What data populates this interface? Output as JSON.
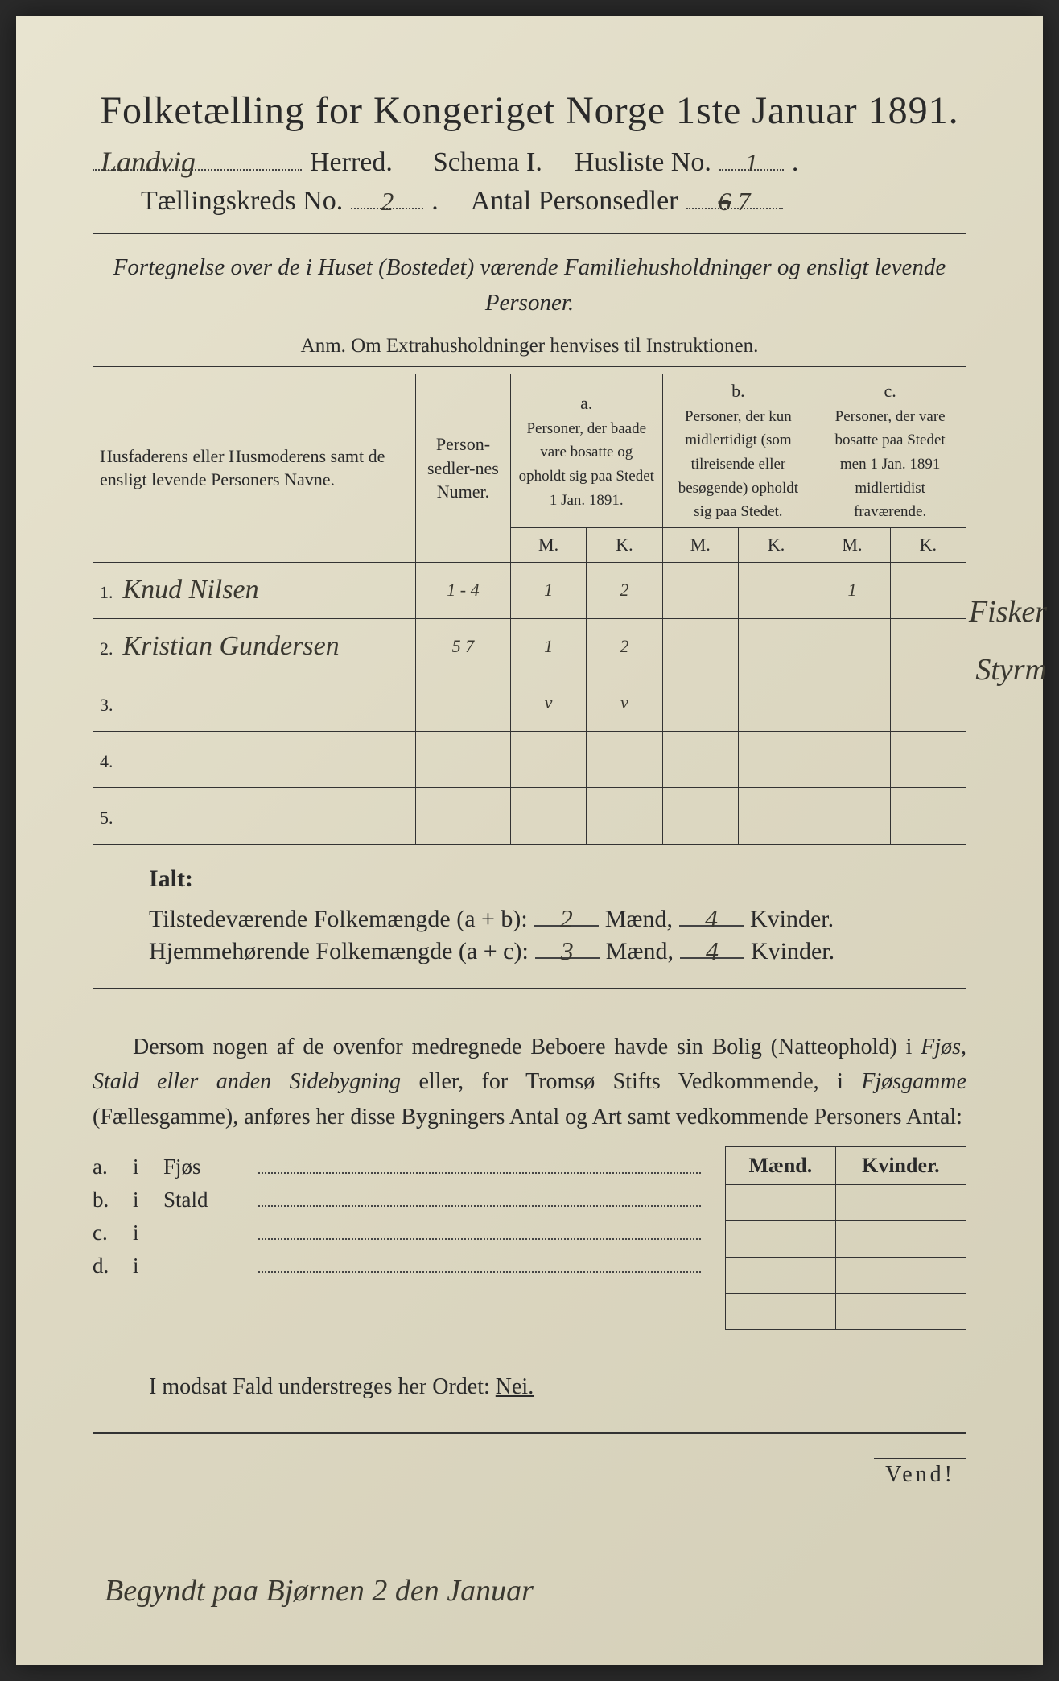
{
  "document": {
    "title": "Folketælling for Kongeriget Norge 1ste Januar 1891.",
    "herred_value": "Landvig",
    "herred_label": "Herred.",
    "schema_label": "Schema I.",
    "husliste_label": "Husliste No.",
    "husliste_value": "1",
    "kreds_label": "Tællingskreds No.",
    "kreds_value": "2",
    "personsedler_label": "Antal Personsedler",
    "personsedler_struck": "6",
    "personsedler_value": "7",
    "subtitle": "Fortegnelse over de i Huset (Bostedet) værende Familiehusholdninger og ensligt levende Personer.",
    "anm": "Anm. Om Extrahusholdninger henvises til Instruktionen."
  },
  "table": {
    "col_name": "Husfaderens eller Husmoderens samt de ensligt levende Personers Navne.",
    "col_num": "Person-sedler-nes Numer.",
    "col_a_head": "a.",
    "col_a": "Personer, der baade vare bosatte og opholdt sig paa Stedet 1 Jan. 1891.",
    "col_b_head": "b.",
    "col_b": "Personer, der kun midlertidigt (som tilreisende eller besøgende) opholdt sig paa Stedet.",
    "col_c_head": "c.",
    "col_c": "Personer, der vare bosatte paa Stedet men 1 Jan. 1891 midlertidist fraværende.",
    "m": "M.",
    "k": "K.",
    "rows": [
      {
        "n": "1.",
        "name": "Knud Nilsen",
        "num": "1 - 4",
        "aM": "1",
        "aK": "2",
        "bM": "",
        "bK": "",
        "cM": "1",
        "cK": "",
        "note": "Fisker"
      },
      {
        "n": "2.",
        "name": "Kristian Gundersen",
        "num": "5 7",
        "aM": "1",
        "aK": "2",
        "bM": "",
        "bK": "",
        "cM": "",
        "cK": "",
        "note": "Styrm"
      },
      {
        "n": "3.",
        "name": "",
        "num": "",
        "aM": "v",
        "aK": "v",
        "bM": "",
        "bK": "",
        "cM": "",
        "cK": "",
        "note": ""
      },
      {
        "n": "4.",
        "name": "",
        "num": "",
        "aM": "",
        "aK": "",
        "bM": "",
        "bK": "",
        "cM": "",
        "cK": "",
        "note": ""
      },
      {
        "n": "5.",
        "name": "",
        "num": "",
        "aM": "",
        "aK": "",
        "bM": "",
        "bK": "",
        "cM": "",
        "cK": "",
        "note": ""
      }
    ]
  },
  "totals": {
    "ialt": "Ialt:",
    "line1_label": "Tilstedeværende Folkemængde (a + b):",
    "line1_m": "2",
    "line1_k": "4",
    "line2_label": "Hjemmehørende Folkemængde (a + c):",
    "line2_m": "3",
    "line2_k": "4",
    "maend": "Mænd,",
    "kvinder": "Kvinder."
  },
  "body": {
    "text_pre": "Dersom nogen af de ovenfor medregnede Beboere havde sin Bolig (Natteophold) i ",
    "em1": "Fjøs, Stald eller anden Sidebygning",
    "text_mid": " eller, for Tromsø Stifts Vedkommende, i ",
    "em2": "Fjøsgamme",
    "text_paren": " (Fællesgamme), anføres her disse Bygningers Antal og Art samt vedkommende Personers Antal:"
  },
  "buildings": {
    "maend": "Mænd.",
    "kvinder": "Kvinder.",
    "rows": [
      {
        "label": "a.",
        "i": "i",
        "type": "Fjøs"
      },
      {
        "label": "b.",
        "i": "i",
        "type": "Stald"
      },
      {
        "label": "c.",
        "i": "i",
        "type": ""
      },
      {
        "label": "d.",
        "i": "i",
        "type": ""
      }
    ]
  },
  "footer": {
    "nei_line": "I modsat Fald understreges her Ordet: ",
    "nei": "Nei.",
    "vend": "Vend!",
    "bottom_script": "Begyndt paa Bjørnen 2 den Januar"
  },
  "colors": {
    "paper": "#e0dbc5",
    "ink": "#2a2a2a",
    "pencil": "#3a3830"
  }
}
